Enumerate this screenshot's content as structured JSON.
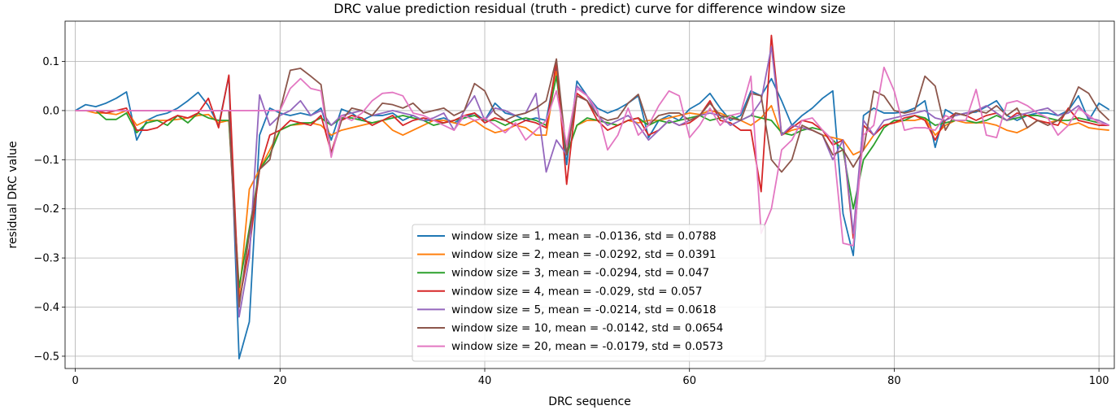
{
  "chart_data": {
    "type": "line",
    "title": "DRC value prediction residual (truth - predict) curve for difference window size",
    "xlabel": "DRC sequence",
    "ylabel": "residual DRC value",
    "xlim": [
      -1,
      101.5
    ],
    "ylim": [
      -0.525,
      0.182
    ],
    "xticks": [
      0,
      20,
      40,
      60,
      80,
      100
    ],
    "xtick_labels": [
      "0",
      "20",
      "40",
      "60",
      "80",
      "100"
    ],
    "yticks": [
      0.1,
      0.0,
      -0.1,
      -0.2,
      -0.3,
      -0.4,
      -0.5
    ],
    "ytick_labels": [
      "0.1",
      "0.0",
      "−0.1",
      "−0.2",
      "−0.3",
      "−0.4",
      "−0.5"
    ],
    "grid": true,
    "legend_position": "lower-center",
    "series": [
      {
        "name": "window size = 1, mean = -0.0136, std = 0.0788",
        "color": "#1f77b4",
        "values": [
          0.0,
          0.012,
          0.008,
          0.015,
          0.025,
          0.038,
          -0.06,
          -0.02,
          -0.01,
          -0.005,
          0.005,
          0.02,
          0.037,
          0.01,
          -0.03,
          0.07,
          -0.505,
          -0.43,
          -0.05,
          0.005,
          -0.005,
          -0.01,
          -0.005,
          -0.01,
          0.005,
          -0.06,
          0.003,
          -0.005,
          -0.02,
          -0.01,
          -0.01,
          -0.005,
          -0.02,
          -0.01,
          -0.02,
          -0.02,
          -0.015,
          -0.025,
          -0.015,
          -0.005,
          -0.02,
          0.015,
          -0.005,
          -0.01,
          -0.02,
          -0.015,
          -0.02,
          0.09,
          -0.11,
          0.06,
          0.03,
          0.005,
          -0.005,
          0.003,
          0.015,
          0.03,
          -0.055,
          -0.02,
          -0.01,
          -0.02,
          0.003,
          0.015,
          0.035,
          0.005,
          -0.02,
          -0.01,
          0.04,
          0.03,
          0.065,
          0.02,
          -0.03,
          -0.01,
          0.005,
          0.025,
          0.04,
          -0.21,
          -0.295,
          -0.01,
          0.005,
          -0.005,
          -0.005,
          -0.003,
          0.005,
          0.02,
          -0.075,
          0.002,
          -0.01,
          -0.005,
          -0.003,
          0.008,
          0.02,
          -0.01,
          -0.02,
          -0.01,
          -0.005,
          -0.005,
          -0.01,
          0.0,
          0.03,
          -0.02,
          0.015,
          0.002
        ]
      },
      {
        "name": "window size = 2, mean = -0.0292, std = 0.0391",
        "color": "#ff7f0e",
        "values": [
          0.0,
          0.0,
          -0.005,
          -0.005,
          -0.008,
          0.0,
          -0.03,
          -0.02,
          -0.02,
          -0.02,
          -0.018,
          -0.015,
          -0.01,
          -0.008,
          -0.025,
          -0.02,
          -0.38,
          -0.16,
          -0.12,
          -0.08,
          -0.04,
          -0.03,
          -0.028,
          -0.025,
          -0.03,
          -0.05,
          -0.04,
          -0.035,
          -0.03,
          -0.025,
          -0.02,
          -0.04,
          -0.05,
          -0.04,
          -0.03,
          -0.02,
          -0.02,
          -0.025,
          -0.03,
          -0.02,
          -0.035,
          -0.045,
          -0.04,
          -0.03,
          -0.035,
          -0.05,
          -0.05,
          0.08,
          -0.09,
          -0.03,
          -0.02,
          -0.02,
          -0.025,
          -0.03,
          -0.02,
          -0.025,
          -0.02,
          -0.02,
          -0.015,
          -0.01,
          -0.005,
          -0.008,
          0.0,
          -0.005,
          -0.015,
          -0.02,
          -0.03,
          -0.015,
          0.01,
          -0.05,
          -0.04,
          -0.035,
          -0.04,
          -0.05,
          -0.055,
          -0.06,
          -0.09,
          -0.08,
          -0.05,
          -0.03,
          -0.025,
          -0.02,
          -0.02,
          -0.015,
          -0.05,
          -0.03,
          -0.02,
          -0.025,
          -0.025,
          -0.025,
          -0.03,
          -0.04,
          -0.045,
          -0.035,
          -0.02,
          -0.025,
          -0.02,
          -0.03,
          -0.025,
          -0.035,
          -0.038,
          -0.04
        ]
      },
      {
        "name": "window size = 3, mean = -0.0294, std = 0.047",
        "color": "#2ca02c",
        "values": [
          0.0,
          0.0,
          0.0,
          -0.018,
          -0.018,
          -0.005,
          -0.045,
          -0.025,
          -0.02,
          -0.03,
          -0.01,
          -0.025,
          -0.005,
          -0.015,
          -0.02,
          -0.02,
          -0.36,
          -0.24,
          -0.12,
          -0.09,
          -0.04,
          -0.03,
          -0.025,
          -0.025,
          -0.015,
          -0.03,
          -0.015,
          -0.015,
          -0.02,
          -0.025,
          -0.02,
          -0.015,
          -0.01,
          -0.015,
          -0.02,
          -0.03,
          -0.025,
          -0.02,
          -0.015,
          -0.01,
          -0.02,
          -0.02,
          -0.03,
          -0.02,
          -0.015,
          -0.02,
          -0.03,
          0.07,
          -0.09,
          -0.03,
          -0.015,
          -0.02,
          -0.025,
          -0.03,
          -0.02,
          -0.015,
          -0.03,
          -0.02,
          -0.025,
          -0.02,
          -0.015,
          -0.01,
          -0.02,
          -0.015,
          -0.01,
          -0.02,
          -0.01,
          -0.015,
          -0.02,
          -0.045,
          -0.05,
          -0.04,
          -0.035,
          -0.04,
          -0.06,
          -0.08,
          -0.2,
          -0.1,
          -0.07,
          -0.035,
          -0.02,
          -0.02,
          -0.01,
          -0.015,
          -0.03,
          -0.025,
          -0.02,
          -0.02,
          -0.025,
          -0.02,
          -0.01,
          -0.02,
          -0.015,
          -0.01,
          -0.01,
          -0.015,
          -0.02,
          -0.02,
          -0.015,
          -0.02,
          -0.025,
          -0.03
        ]
      },
      {
        "name": "window size = 4, mean = -0.029, std = 0.057",
        "color": "#d62728",
        "values": [
          0.0,
          0.0,
          0.0,
          -0.005,
          0.0,
          0.005,
          -0.04,
          -0.04,
          -0.035,
          -0.02,
          -0.01,
          -0.015,
          -0.005,
          0.025,
          -0.035,
          0.072,
          -0.39,
          -0.28,
          -0.12,
          -0.05,
          -0.04,
          -0.02,
          -0.025,
          -0.03,
          -0.01,
          -0.085,
          -0.02,
          -0.01,
          -0.015,
          -0.03,
          -0.02,
          -0.01,
          -0.03,
          -0.02,
          -0.015,
          -0.02,
          -0.025,
          -0.02,
          -0.01,
          -0.005,
          -0.025,
          -0.015,
          -0.02,
          -0.03,
          -0.02,
          -0.025,
          -0.035,
          0.1,
          -0.15,
          0.035,
          0.02,
          -0.02,
          -0.04,
          -0.03,
          -0.02,
          -0.015,
          -0.05,
          -0.04,
          -0.02,
          -0.03,
          -0.025,
          -0.01,
          0.02,
          -0.02,
          -0.025,
          -0.04,
          -0.04,
          -0.165,
          0.153,
          -0.05,
          -0.035,
          -0.02,
          -0.025,
          -0.04,
          -0.07,
          -0.06,
          -0.26,
          -0.03,
          -0.05,
          -0.03,
          -0.025,
          -0.015,
          -0.01,
          -0.02,
          -0.06,
          -0.02,
          -0.005,
          -0.01,
          -0.02,
          -0.01,
          -0.005,
          -0.02,
          -0.005,
          -0.01,
          -0.02,
          -0.025,
          -0.03,
          0.005,
          -0.02,
          -0.025,
          -0.03,
          -0.03
        ]
      },
      {
        "name": "window size = 5, mean = -0.0214, std = 0.0618",
        "color": "#9467bd",
        "values": [
          0.0,
          0.0,
          0.0,
          0.0,
          0.0,
          0.0,
          0.0,
          0.0,
          0.0,
          0.0,
          0.0,
          0.0,
          0.0,
          0.0,
          0.0,
          0.0,
          -0.42,
          -0.3,
          0.032,
          -0.03,
          -0.01,
          0.0,
          0.02,
          -0.01,
          0.0,
          -0.03,
          -0.01,
          -0.005,
          0.0,
          -0.01,
          -0.005,
          0.0,
          -0.005,
          -0.01,
          -0.02,
          -0.015,
          -0.005,
          -0.04,
          0.0,
          0.03,
          -0.02,
          0.005,
          0.0,
          -0.01,
          -0.005,
          0.035,
          -0.125,
          -0.06,
          -0.09,
          0.05,
          0.03,
          -0.01,
          -0.03,
          -0.02,
          -0.01,
          -0.03,
          -0.06,
          -0.04,
          -0.02,
          -0.03,
          -0.02,
          -0.01,
          -0.005,
          -0.01,
          -0.03,
          -0.02,
          -0.01,
          0.02,
          0.13,
          -0.05,
          -0.03,
          -0.035,
          -0.04,
          -0.05,
          -0.1,
          -0.06,
          -0.25,
          -0.02,
          -0.05,
          -0.02,
          -0.015,
          -0.01,
          -0.005,
          0.0,
          -0.015,
          -0.02,
          -0.01,
          -0.005,
          0.0,
          0.01,
          -0.005,
          -0.02,
          -0.01,
          -0.005,
          0.0,
          0.005,
          -0.01,
          -0.005,
          0.01,
          -0.015,
          -0.02,
          -0.03
        ]
      },
      {
        "name": "window size = 10, mean = -0.0142, std = 0.0654",
        "color": "#8c564b",
        "values": [
          0.0,
          0.0,
          0.0,
          0.0,
          0.0,
          0.0,
          0.0,
          0.0,
          0.0,
          0.0,
          0.0,
          0.0,
          0.0,
          0.0,
          0.0,
          0.0,
          -0.4,
          -0.25,
          -0.12,
          -0.1,
          0.0,
          0.082,
          0.086,
          0.07,
          0.053,
          -0.09,
          -0.02,
          0.005,
          0.0,
          -0.01,
          0.015,
          0.012,
          0.005,
          0.015,
          -0.005,
          0.0,
          0.005,
          -0.01,
          0.0,
          0.055,
          0.04,
          -0.005,
          -0.02,
          -0.01,
          -0.005,
          0.005,
          0.02,
          0.105,
          -0.09,
          0.03,
          0.02,
          -0.01,
          -0.02,
          -0.015,
          0.015,
          0.033,
          -0.03,
          -0.01,
          -0.005,
          -0.005,
          -0.02,
          -0.01,
          0.015,
          -0.01,
          -0.015,
          -0.02,
          0.035,
          0.03,
          -0.1,
          -0.125,
          -0.1,
          -0.03,
          -0.04,
          -0.05,
          -0.09,
          -0.08,
          -0.115,
          -0.08,
          0.04,
          0.03,
          0.0,
          -0.005,
          0.0,
          0.07,
          0.05,
          -0.04,
          -0.005,
          -0.01,
          0.0,
          -0.005,
          0.01,
          -0.01,
          0.005,
          -0.035,
          -0.02,
          -0.03,
          -0.02,
          0.0,
          0.048,
          0.035,
          0.0,
          -0.02
        ]
      },
      {
        "name": "window size = 20, mean = -0.0179, std = 0.0573",
        "color": "#e377c2",
        "values": [
          0.0,
          0.0,
          0.0,
          0.0,
          0.0,
          0.0,
          0.0,
          0.0,
          0.0,
          0.0,
          0.0,
          0.0,
          0.0,
          0.0,
          0.0,
          0.0,
          0.0,
          0.0,
          0.0,
          0.0,
          0.0,
          0.045,
          0.065,
          0.045,
          0.04,
          -0.095,
          -0.01,
          -0.02,
          -0.005,
          0.02,
          0.035,
          0.037,
          0.03,
          -0.005,
          -0.01,
          -0.02,
          -0.03,
          -0.04,
          -0.01,
          -0.02,
          -0.015,
          -0.03,
          -0.045,
          -0.025,
          -0.06,
          -0.04,
          -0.02,
          0.04,
          -0.07,
          0.045,
          0.03,
          0.0,
          -0.08,
          -0.05,
          0.005,
          -0.05,
          -0.03,
          0.01,
          0.04,
          0.03,
          -0.055,
          -0.03,
          0.005,
          -0.03,
          -0.01,
          -0.005,
          0.07,
          -0.25,
          -0.2,
          -0.08,
          -0.06,
          -0.02,
          -0.015,
          -0.04,
          -0.06,
          -0.27,
          -0.275,
          -0.05,
          -0.03,
          0.088,
          0.04,
          -0.04,
          -0.035,
          -0.035,
          -0.04,
          -0.01,
          -0.02,
          -0.02,
          0.043,
          -0.05,
          -0.055,
          0.015,
          0.02,
          0.01,
          -0.005,
          -0.015,
          -0.05,
          -0.03,
          0.005,
          -0.01,
          -0.025,
          -0.03
        ]
      }
    ]
  }
}
